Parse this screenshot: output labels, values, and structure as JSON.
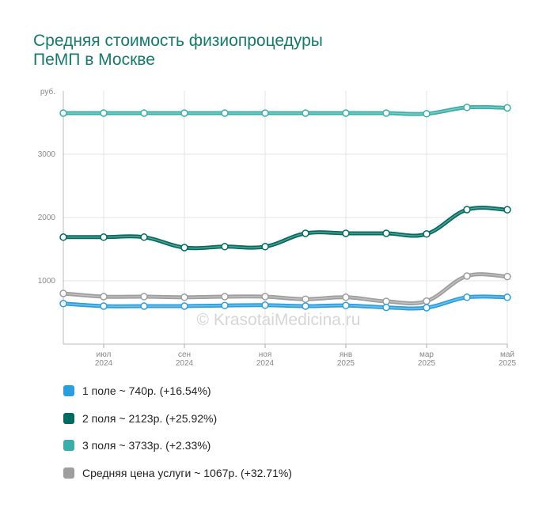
{
  "chart_data": {
    "type": "line",
    "title": "Средняя стоимость физиопроцедуры ПеМП в Москве",
    "y_label": "руб.",
    "annotation": "© KrasotaiMedicina.ru",
    "categories": [
      null,
      "июл 2024",
      null,
      "сен 2024",
      null,
      "ноя 2024",
      null,
      "янв 2025",
      null,
      "мар 2025",
      null,
      "май 2025"
    ],
    "ylim": [
      0,
      4000
    ],
    "yticks": [
      1000,
      2000,
      3000
    ],
    "grid": true,
    "series": [
      {
        "name": "1 поле ~ 740р. (+16.54%)",
        "color": "#2a9fdf",
        "values": [
          640,
          600,
          600,
          600,
          610,
          615,
          600,
          610,
          580,
          575,
          740,
          740
        ]
      },
      {
        "name": "2 поля ~ 2123р. (+25.92%)",
        "color": "#006b5f",
        "values": [
          1690,
          1690,
          1690,
          1525,
          1540,
          1540,
          1750,
          1750,
          1750,
          1740,
          2125,
          2123
        ]
      },
      {
        "name": "3 поля ~ 3733р. (+2.33%)",
        "color": "#3aafa9",
        "values": [
          3650,
          3650,
          3650,
          3650,
          3650,
          3650,
          3650,
          3650,
          3650,
          3640,
          3740,
          3733
        ]
      },
      {
        "name": "Средняя цена услуги ~ 1067р. (+32.71%)",
        "color": "#9e9e9e",
        "values": [
          800,
          750,
          750,
          740,
          750,
          750,
          710,
          740,
          675,
          680,
          1075,
          1067
        ]
      }
    ]
  }
}
